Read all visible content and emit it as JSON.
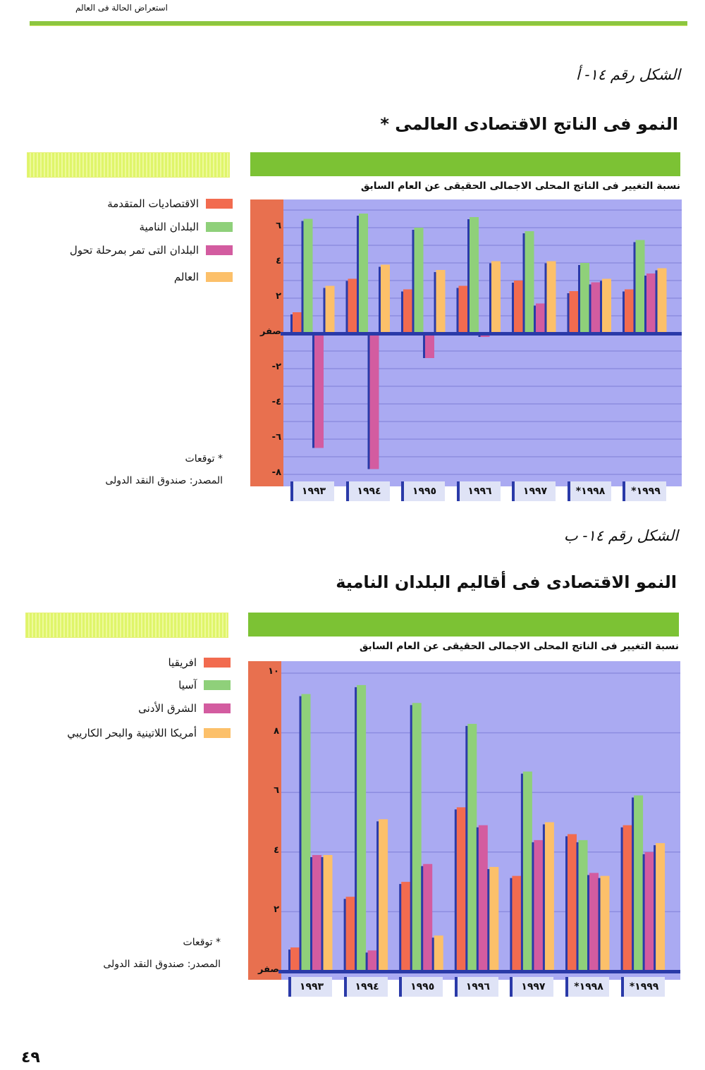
{
  "page": {
    "running_head": "استعراض الحالة فى العالم",
    "page_number": "٤٩"
  },
  "colors": {
    "plot_background": "#aaaaf2",
    "axis_band": "#e8704f",
    "bar_shadow": "#2a3aa8",
    "header_green": "#7cc234"
  },
  "chart_data": [
    {
      "type": "bar",
      "figure_label": "الشكل رقم ١٤- أ",
      "title": "النمو فى الناتج الاقتصادى العالمى *",
      "ylabel": "نسبة التغيير فى الناتج المحلى الاجمالى الحقيقى عن العام السابق",
      "categories": [
        "١٩٩٣",
        "١٩٩٤",
        "١٩٩٥",
        "١٩٩٦",
        "١٩٩٧",
        "١٩٩٨*",
        "١٩٩٩*"
      ],
      "ylim": [
        -8,
        7
      ],
      "yticks": [
        {
          "value": 6,
          "label": "٦"
        },
        {
          "value": 4,
          "label": "٤"
        },
        {
          "value": 2,
          "label": "٢"
        },
        {
          "value": 0,
          "label": "صفر"
        },
        {
          "value": -2,
          "label": "٢-"
        },
        {
          "value": -4,
          "label": "٤-"
        },
        {
          "value": -6,
          "label": "٦-"
        },
        {
          "value": -8,
          "label": "٨-"
        }
      ],
      "grid": true,
      "legend_position": "left",
      "series": [
        {
          "name": "الاقتصاديات المتقدمة",
          "color": "#f26b4f",
          "values": [
            1.2,
            3.1,
            2.5,
            2.7,
            3.0,
            2.4,
            2.5
          ]
        },
        {
          "name": "البلدان النامية",
          "color": "#8fd07a",
          "values": [
            6.5,
            6.8,
            6.0,
            6.6,
            5.8,
            4.0,
            5.3
          ]
        },
        {
          "name": "البلدان التى تمر بمرحلة تحول",
          "color": "#d35ca0",
          "values": [
            -6.5,
            -7.7,
            -1.4,
            -0.2,
            1.7,
            2.9,
            3.4
          ]
        },
        {
          "name": "العالم",
          "color": "#fcc06a",
          "values": [
            2.7,
            3.9,
            3.6,
            4.1,
            4.1,
            3.1,
            3.7
          ]
        }
      ],
      "notes": [
        "* توقعات",
        "المصدر: صندوق النقد الدولى"
      ]
    },
    {
      "type": "bar",
      "figure_label": "الشكل رقم ١٤- ب",
      "title": "النمو الاقتصادى فى أقاليم البلدان النامية",
      "ylabel": "نسبة التغيير فى الناتج المحلى الاجمالى الحقيقى عن العام السابق",
      "categories": [
        "١٩٩٣",
        "١٩٩٤",
        "١٩٩٥",
        "١٩٩٦",
        "١٩٩٧",
        "١٩٩٨*",
        "١٩٩٩*"
      ],
      "ylim": [
        0,
        10.3
      ],
      "yticks": [
        {
          "value": 10,
          "label": "١٠"
        },
        {
          "value": 8,
          "label": "٨"
        },
        {
          "value": 6,
          "label": "٦"
        },
        {
          "value": 4,
          "label": "٤"
        },
        {
          "value": 2,
          "label": "٢"
        },
        {
          "value": 0,
          "label": "صفر"
        }
      ],
      "grid": true,
      "legend_position": "left",
      "series": [
        {
          "name": "افريقيا",
          "color": "#f26b4f",
          "values": [
            0.8,
            2.5,
            3.0,
            5.5,
            3.2,
            4.6,
            4.9
          ]
        },
        {
          "name": "آسيا",
          "color": "#8fd07a",
          "values": [
            9.3,
            9.6,
            9.0,
            8.3,
            6.7,
            4.4,
            5.9
          ]
        },
        {
          "name": "الشرق الأدنى",
          "color": "#d35ca0",
          "values": [
            3.9,
            0.7,
            3.6,
            4.9,
            4.4,
            3.3,
            4.0
          ]
        },
        {
          "name": "أمريكا اللاتينية والبحر الكاريبي",
          "color": "#fcc06a",
          "values": [
            3.9,
            5.1,
            1.2,
            3.5,
            5.0,
            3.2,
            4.3
          ]
        }
      ],
      "notes": [
        "* توقعات",
        "المصدر: صندوق النقد الدولى"
      ]
    }
  ]
}
